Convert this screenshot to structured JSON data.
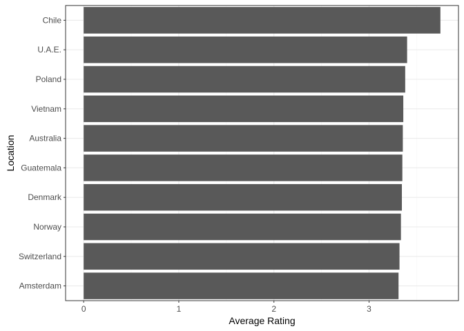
{
  "chart_data": {
    "type": "bar",
    "orientation": "horizontal",
    "title": "",
    "xlabel": "Average Rating",
    "ylabel": "Location",
    "categories": [
      "Chile",
      "U.A.E.",
      "Poland",
      "Vietnam",
      "Australia",
      "Guatemala",
      "Denmark",
      "Norway",
      "Switzerland",
      "Amsterdam"
    ],
    "values": [
      3.75,
      3.4,
      3.38,
      3.36,
      3.355,
      3.35,
      3.345,
      3.335,
      3.32,
      3.31
    ],
    "xlim": [
      -0.19,
      3.94
    ],
    "xticks": [
      "0",
      "1",
      "2",
      "3"
    ],
    "grid": true,
    "legend": "none",
    "colors": {
      "bar": "#595959",
      "grid_major": "#ebebeb",
      "grid_minor": "#f5f5f5",
      "panel_border": "#333333"
    }
  }
}
